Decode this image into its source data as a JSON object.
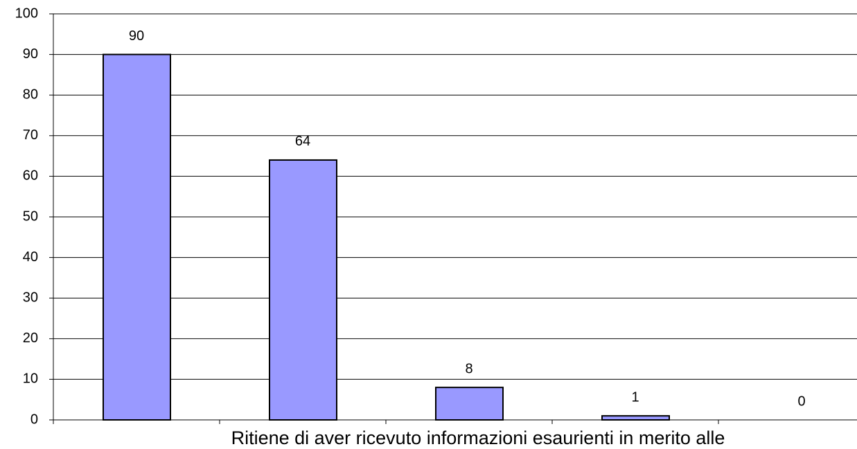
{
  "chart_data": {
    "type": "bar",
    "x_label": "Ritiene di aver ricevuto informazioni esaurienti in merito alle",
    "categories": [
      null,
      null,
      null,
      null,
      null
    ],
    "values": [
      90,
      64,
      8,
      1,
      0
    ],
    "color": "#9999ff",
    "ylim": [
      0,
      100
    ],
    "yticks": [
      0,
      10,
      20,
      30,
      40,
      50,
      60,
      70,
      80,
      90,
      100
    ],
    "grid": true
  }
}
